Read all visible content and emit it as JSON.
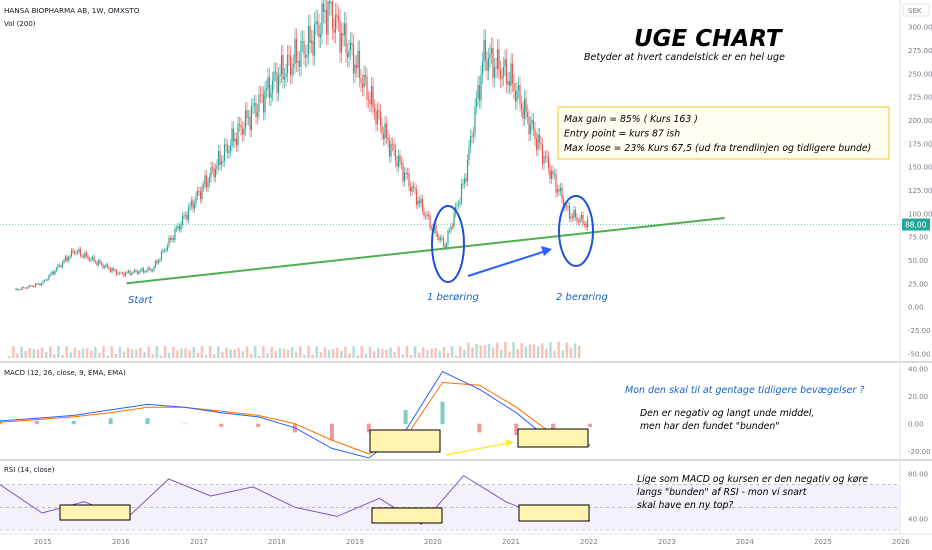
{
  "header": {
    "symbol": "HANSA BIOPHARMA AB, 1W, OMXSTO",
    "volume_label": "Vol (200)",
    "currency": "SEK",
    "price_tag": "88,00"
  },
  "annotations": {
    "title": "UGE CHART",
    "subtitle": "Betyder at hvert candelstick er en hel uge",
    "box_lines": [
      "Max gain = 85% ( Kurs 163 )",
      "Entry point = kurs 87 ish",
      "Max loose = 23% Kurs 67,5 (ud fra trendlinjen og tidligere bunde)"
    ],
    "start_label": "Start",
    "touch1_label": "1 berøring",
    "touch2_label": "2 berøring",
    "macd_question": "Mon den skal til at gentage tidligere bevægelser ?",
    "macd_note_lines": [
      "Den er negativ og langt unde middel,",
      "men har den fundet \"bunden\""
    ],
    "rsi_note_lines": [
      "Lige som MACD og kursen er den negativ og køre",
      "langs \"bunden\" af RSI - mon vi snart",
      "skal have en ny top?"
    ]
  },
  "colors": {
    "up": "#26a69a",
    "down": "#ef5350",
    "trendline": "#4caf50",
    "annotation_blue": "#1565c0",
    "macd_line": "#2962ff",
    "signal_line": "#ff6d00",
    "rsi_line": "#7e57c2",
    "highlight_fill": "#fff3b0",
    "price_tag_bg": "#26a69a"
  },
  "chart_data": [
    {
      "type": "line",
      "title": "HANSA BIOPHARMA AB, 1W, OMXSTO",
      "unit": "SEK",
      "x": [
        "2014-09",
        "2015-01",
        "2015-06",
        "2016-01",
        "2016-06",
        "2017-01",
        "2017-06",
        "2018-01",
        "2018-06",
        "2018-09",
        "2019-01",
        "2019-06",
        "2020-01",
        "2020-03",
        "2020-06",
        "2020-09",
        "2021-01",
        "2021-06",
        "2021-10",
        "2022-01"
      ],
      "y": [
        18,
        25,
        60,
        35,
        40,
        120,
        175,
        245,
        280,
        320,
        265,
        180,
        85,
        65,
        135,
        270,
        245,
        165,
        100,
        88
      ],
      "yticks": [
        -50,
        -25,
        0,
        25,
        50,
        75,
        100,
        125,
        150,
        175,
        200,
        225,
        250,
        275,
        300
      ],
      "ylim": [
        -55,
        320
      ],
      "xticks": [
        "2015",
        "2016",
        "2017",
        "2018",
        "2019",
        "2020",
        "2021",
        "2022",
        "2023",
        "2024",
        "2025",
        "2026"
      ],
      "last_price": 88.0,
      "trendline": {
        "from": [
          "2016-02",
          25
        ],
        "to": [
          "2023-10",
          95
        ]
      }
    },
    {
      "type": "line",
      "title": "MACD (12, 26, close, 9, EMA, EMA)",
      "series": [
        {
          "name": "MACD",
          "values": [
            2,
            4,
            6,
            10,
            14,
            12,
            8,
            5,
            -3,
            -18,
            -25,
            -5,
            38,
            25,
            8,
            -14,
            -16
          ]
        },
        {
          "name": "Signal",
          "values": [
            1,
            3,
            5,
            8,
            12,
            12,
            9,
            6,
            0,
            -12,
            -22,
            -10,
            30,
            28,
            12,
            -8,
            -15
          ]
        }
      ],
      "yticks": [
        -20,
        0,
        20,
        40
      ],
      "ylim": [
        -25,
        42
      ]
    },
    {
      "type": "line",
      "title": "RSI (14, close)",
      "series": [
        {
          "name": "RSI",
          "values": [
            70,
            45,
            55,
            40,
            75,
            60,
            68,
            50,
            42,
            58,
            35,
            78,
            55,
            40,
            38
          ]
        }
      ],
      "yticks": [
        40,
        80
      ],
      "ylim": [
        30,
        90
      ]
    }
  ]
}
